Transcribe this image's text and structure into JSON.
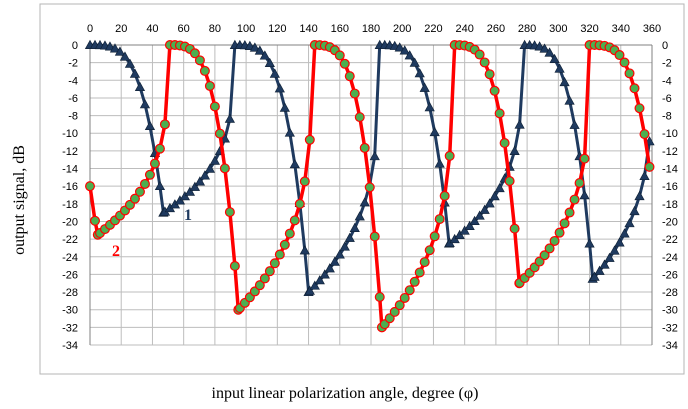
{
  "chart_data": {
    "type": "line",
    "title": "",
    "xlabel": "input linear polarization angle, degree (φ)",
    "ylabel": "output signal, dB",
    "xlim": [
      0,
      360
    ],
    "ylim": [
      -34,
      0
    ],
    "x_ticks": [
      "0",
      "20",
      "40",
      "60",
      "80",
      "100",
      "120",
      "140",
      "160",
      "180",
      "200",
      "220",
      "240",
      "260",
      "280",
      "300",
      "320",
      "340",
      "360"
    ],
    "y_ticks": [
      "0",
      "-2",
      "-4",
      "-6",
      "-8",
      "-10",
      "-12",
      "-14",
      "-16",
      "-18",
      "-20",
      "-22",
      "-24",
      "-26",
      "-28",
      "-30",
      "-32",
      "-34"
    ],
    "x_tick_position": "top",
    "y_ticks_both_sides": true,
    "grid": true,
    "legend": "none",
    "series": [
      {
        "name": "1",
        "color": "#1f3a5f",
        "marker": "triangle",
        "marker_color": "#1f3a5f",
        "dips": [
          47,
          140,
          230,
          322
        ],
        "dip_depths": [
          -19,
          -28,
          -22.5,
          -26.5
        ],
        "peaks": [
          0,
          92,
          185,
          277,
          360
        ]
      },
      {
        "name": "2",
        "color": "#ff0000",
        "marker": "circle",
        "marker_color": "#4caf50",
        "dips": [
          5,
          95,
          187,
          275
        ],
        "dip_depths": [
          -21.5,
          -30,
          -32,
          -27
        ],
        "peaks": [
          50,
          142,
          232,
          320
        ],
        "start_value": -16,
        "end_value": -16
      }
    ],
    "annotations": [
      {
        "text": "1",
        "series": 0
      },
      {
        "text": "2",
        "series": 1
      }
    ]
  }
}
